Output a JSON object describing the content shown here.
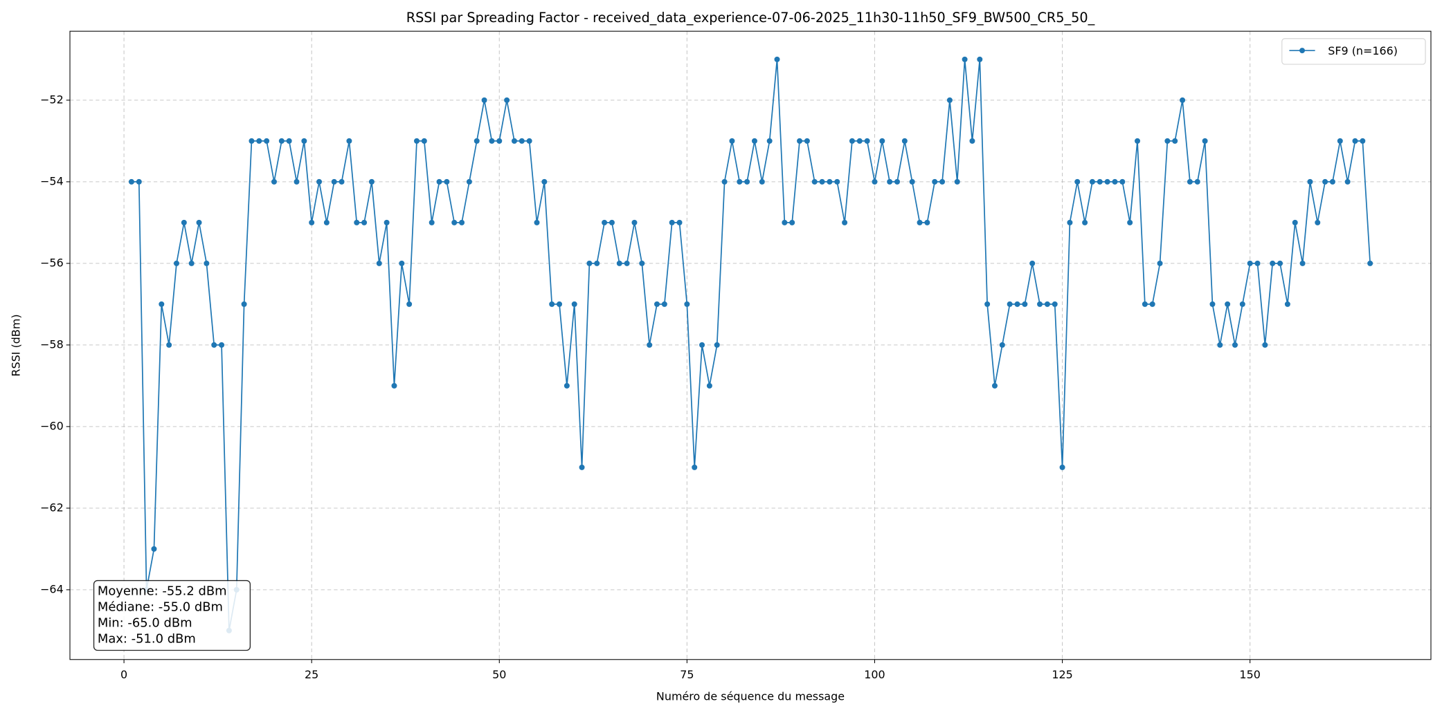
{
  "chart_data": {
    "type": "line",
    "title": "RSSI par Spreading Factor - received_data_experience-07-06-2025_11h30-11h50_SF9_BW500_CR5_50_",
    "x_label": "Numéro de séquence du message",
    "y_label": "RSSI (dBm)",
    "x": [
      1,
      2,
      3,
      4,
      5,
      6,
      7,
      8,
      9,
      10,
      11,
      12,
      13,
      14,
      15,
      16,
      17,
      18,
      19,
      20,
      21,
      22,
      23,
      24,
      25,
      26,
      27,
      28,
      29,
      30,
      31,
      32,
      33,
      34,
      35,
      36,
      37,
      38,
      39,
      40,
      41,
      42,
      43,
      44,
      45,
      46,
      47,
      48,
      49,
      50,
      51,
      52,
      53,
      54,
      55,
      56,
      57,
      58,
      59,
      60,
      61,
      62,
      63,
      64,
      65,
      66,
      67,
      68,
      69,
      70,
      71,
      72,
      73,
      74,
      75,
      76,
      77,
      78,
      79,
      80,
      81,
      82,
      83,
      84,
      85,
      86,
      87,
      88,
      89,
      90,
      91,
      92,
      93,
      94,
      95,
      96,
      97,
      98,
      99,
      100,
      101,
      102,
      103,
      104,
      105,
      106,
      107,
      108,
      109,
      110,
      111,
      112,
      113,
      114,
      115,
      116,
      117,
      118,
      119,
      120,
      121,
      122,
      123,
      124,
      125,
      126,
      127,
      128,
      129,
      130,
      131,
      132,
      133,
      134,
      135,
      136,
      137,
      138,
      139,
      140,
      141,
      142,
      143,
      144,
      145,
      146,
      147,
      148,
      149,
      150,
      151,
      152,
      153,
      154,
      155,
      156,
      157,
      158,
      159,
      160,
      161,
      162,
      163,
      164,
      165,
      166
    ],
    "series": [
      {
        "name": "SF9 (n=166)",
        "color": "#1f77b4",
        "values": [
          -54,
          -54,
          -64,
          -63,
          -57,
          -58,
          -56,
          -55,
          -56,
          -55,
          -56,
          -58,
          -58,
          -65,
          -64,
          -57,
          -53,
          -53,
          -53,
          -54,
          -53,
          -53,
          -54,
          -53,
          -55,
          -54,
          -55,
          -54,
          -54,
          -53,
          -55,
          -55,
          -54,
          -56,
          -55,
          -59,
          -56,
          -57,
          -53,
          -53,
          -55,
          -54,
          -54,
          -55,
          -55,
          -54,
          -53,
          -52,
          -53,
          -53,
          -52,
          -53,
          -53,
          -53,
          -55,
          -54,
          -57,
          -57,
          -59,
          -57,
          -61,
          -56,
          -56,
          -55,
          -55,
          -56,
          -56,
          -55,
          -56,
          -58,
          -57,
          -57,
          -55,
          -55,
          -57,
          -61,
          -58,
          -59,
          -58,
          -54,
          -53,
          -54,
          -54,
          -53,
          -54,
          -53,
          -51,
          -55,
          -55,
          -53,
          -53,
          -54,
          -54,
          -54,
          -54,
          -55,
          -53,
          -53,
          -53,
          -54,
          -53,
          -54,
          -54,
          -53,
          -54,
          -55,
          -55,
          -54,
          -54,
          -52,
          -54,
          -51,
          -53,
          -51,
          -57,
          -59,
          -58,
          -57,
          -57,
          -57,
          -56,
          -57,
          -57,
          -57,
          -61,
          -55,
          -54,
          -55,
          -54,
          -54,
          -54,
          -54,
          -54,
          -55,
          -53,
          -57,
          -57,
          -56,
          -53,
          -53,
          -52,
          -54,
          -54,
          -53,
          -57,
          -58,
          -57,
          -58,
          -57,
          -56,
          -56,
          -58,
          -56,
          -56,
          -57,
          -55,
          -56,
          -54,
          -55,
          -54,
          -54,
          -53,
          -54,
          -53,
          -53,
          -56
        ]
      }
    ],
    "xlim": [
      -7.2,
      174.1
    ],
    "ylim": [
      -65.71,
      -50.31
    ],
    "xticks": [
      0,
      25,
      50,
      75,
      100,
      125,
      150
    ],
    "yticks": [
      {
        "value": -64,
        "label": "−64"
      },
      {
        "value": -62,
        "label": "−62"
      },
      {
        "value": -60,
        "label": "−60"
      },
      {
        "value": -58,
        "label": "−58"
      },
      {
        "value": -56,
        "label": "−56"
      },
      {
        "value": -54,
        "label": "−54"
      },
      {
        "value": -52,
        "label": "−52"
      }
    ],
    "grid": true,
    "legend": "upper right",
    "stats_box": [
      "Moyenne: -55.2 dBm",
      "Médiane: -55.0 dBm",
      "Min: -65.0 dBm",
      "Max: -51.0 dBm"
    ]
  }
}
